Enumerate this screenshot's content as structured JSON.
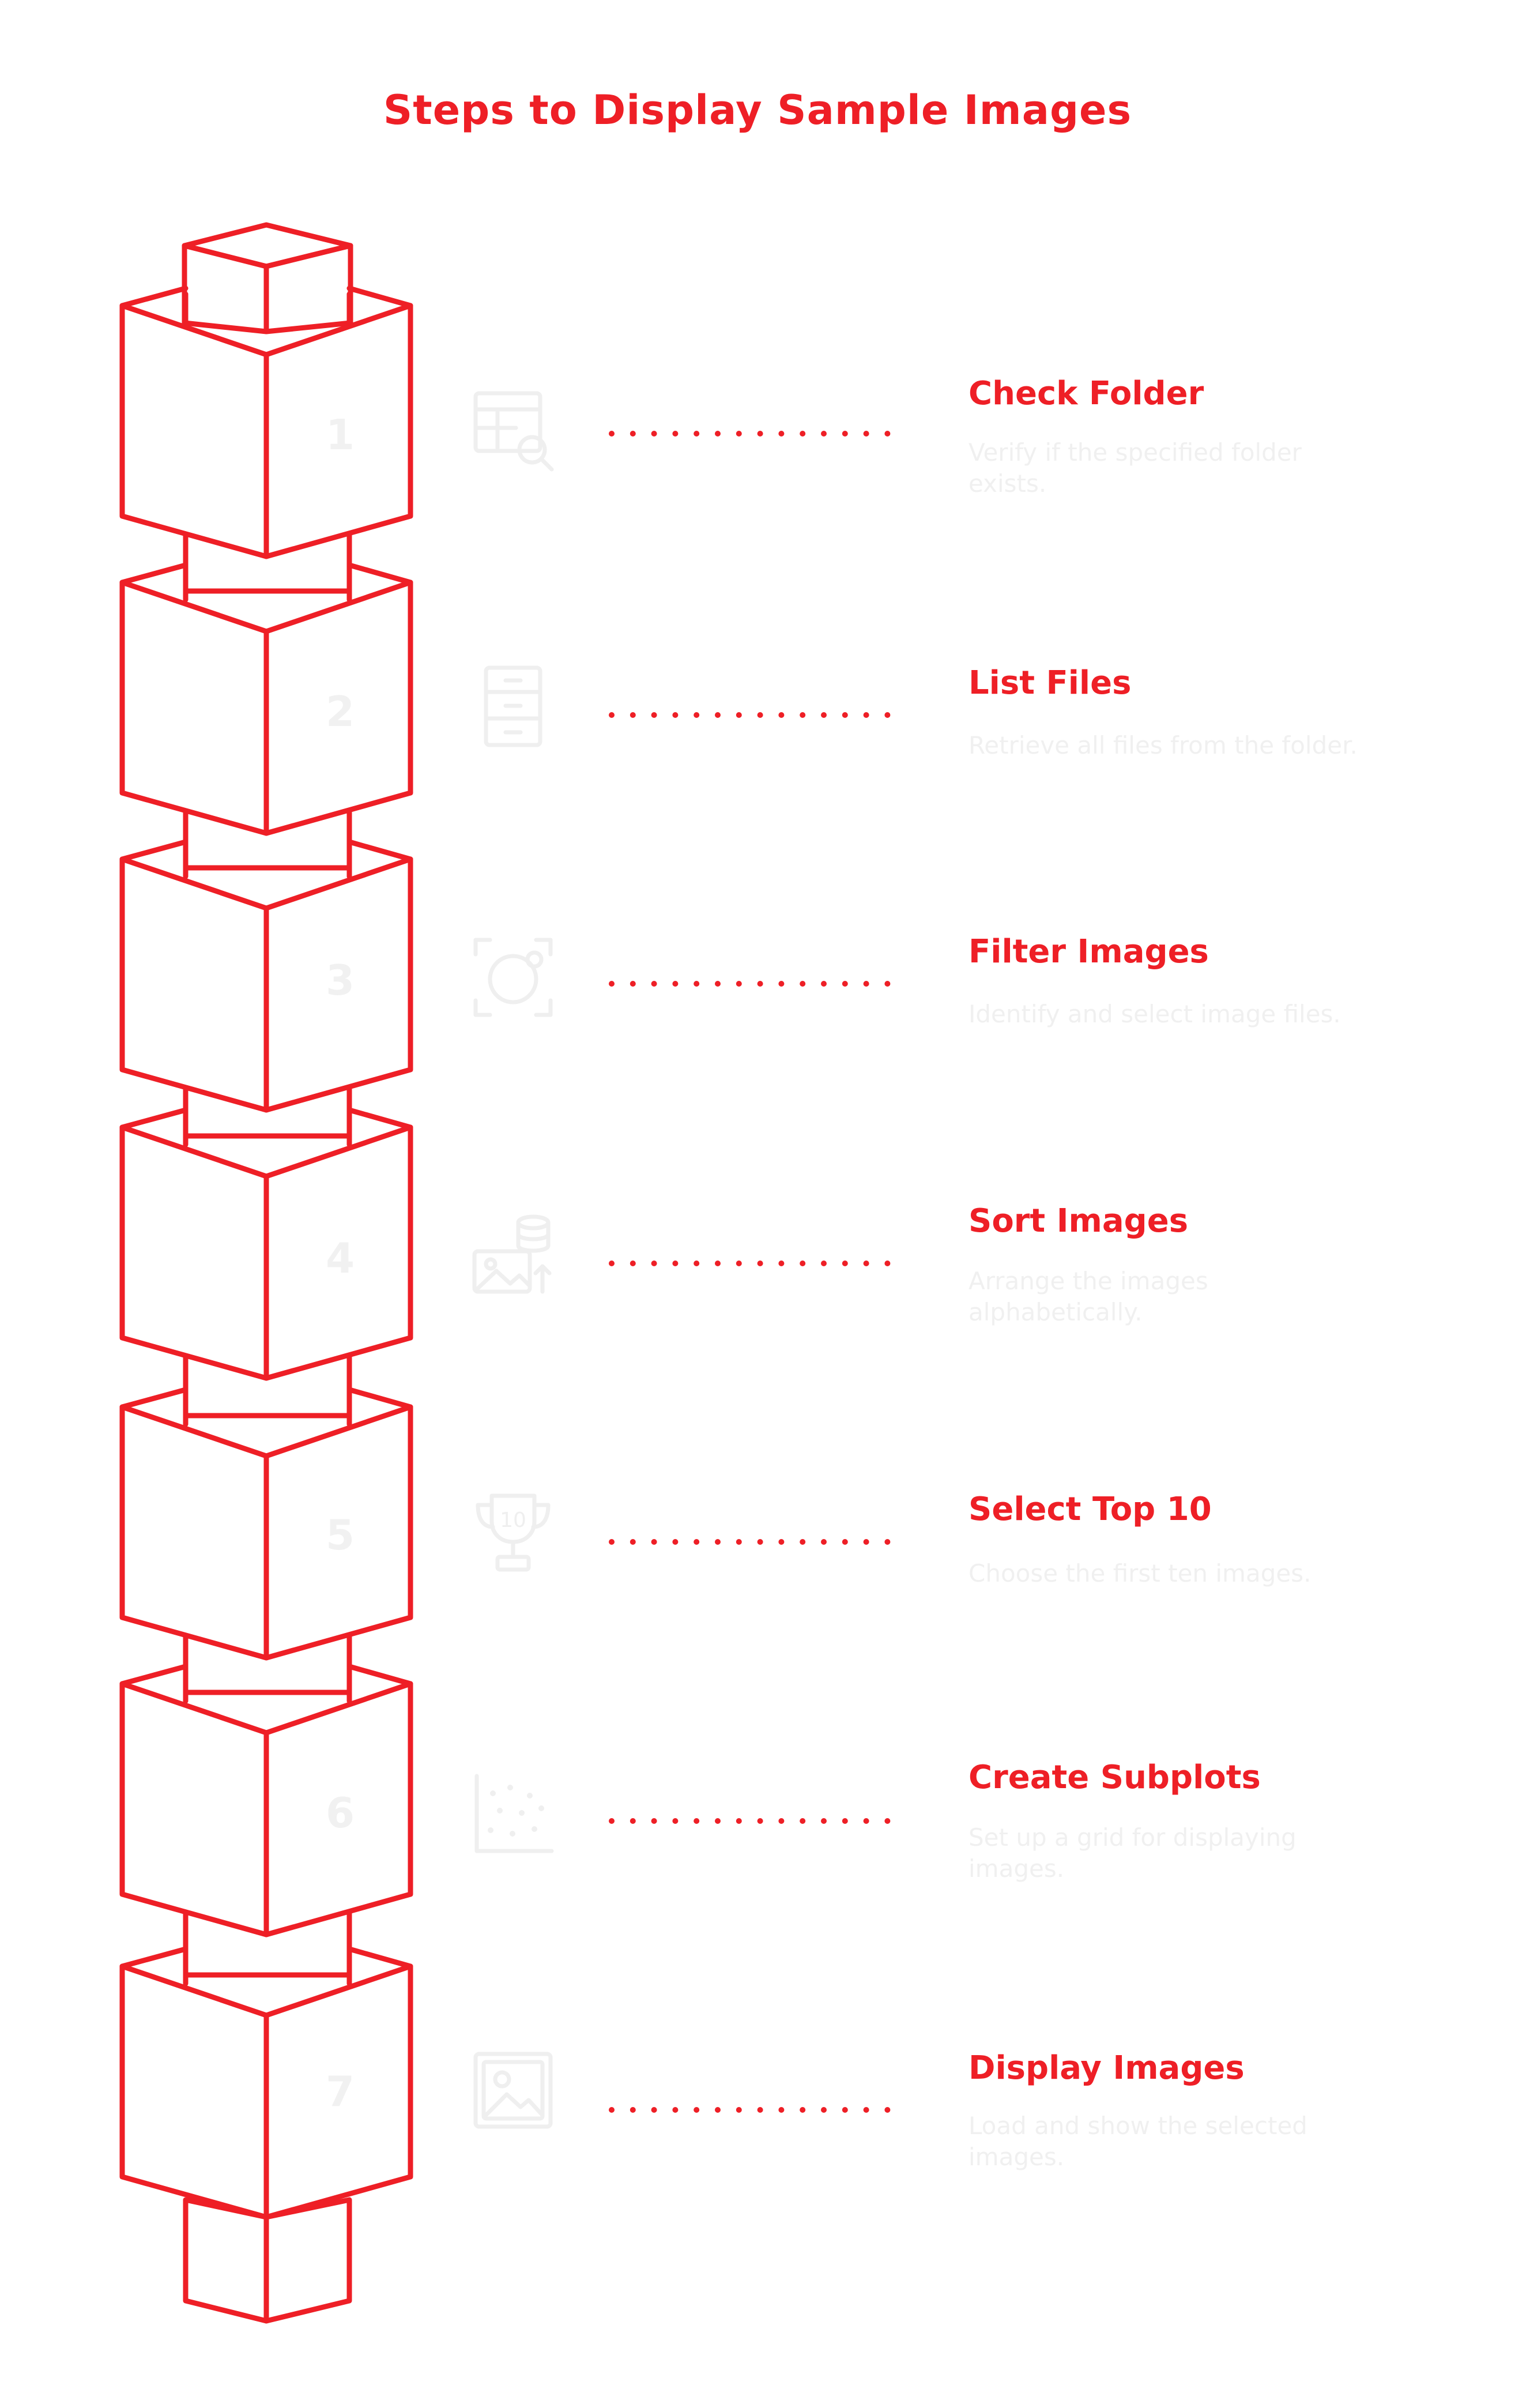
{
  "title": "Steps to Display Sample Images",
  "colors": {
    "accent": "#ee1f26",
    "faint": "#f0f0f0"
  },
  "steps": [
    {
      "number": "1",
      "title": "Check Folder",
      "desc": "Verify if the specified folder exists.",
      "icon": "table-search-icon"
    },
    {
      "number": "2",
      "title": "List Files",
      "desc": "Retrieve all files from the folder.",
      "icon": "file-cabinet-icon"
    },
    {
      "number": "3",
      "title": "Filter Images",
      "desc": "Identify and select image files.",
      "icon": "focus-scan-icon"
    },
    {
      "number": "4",
      "title": "Sort Images",
      "desc": "Arrange the images alphabetically.",
      "icon": "image-database-icon"
    },
    {
      "number": "5",
      "title": "Select Top 10",
      "desc": "Choose the first ten images.",
      "icon": "trophy-10-icon"
    },
    {
      "number": "6",
      "title": "Create Subplots",
      "desc": "Set up a grid for displaying images.",
      "icon": "scatter-grid-icon"
    },
    {
      "number": "7",
      "title": "Display Images",
      "desc": "Load and show the selected images.",
      "icon": "picture-icon"
    }
  ]
}
